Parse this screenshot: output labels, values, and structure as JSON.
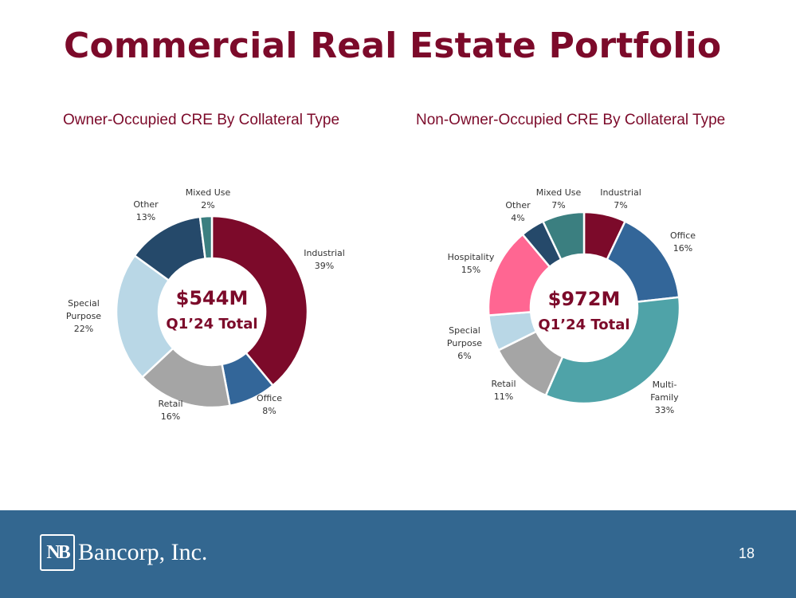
{
  "page": {
    "title": "Commercial Real Estate Portfolio",
    "page_number": "18"
  },
  "footer": {
    "logo_mark": "NB",
    "company_name": "Bancorp, Inc."
  },
  "colors": {
    "brand": "#7c0a2a",
    "footer_bg": "#336790"
  },
  "chart_data": [
    {
      "type": "pie",
      "variant": "donut",
      "title": "Owner-Occupied CRE By Collateral Type",
      "center_total": "$544M",
      "center_subtitle": "Q1’24 Total",
      "slices": [
        {
          "label": [
            "Industrial"
          ],
          "percent_label": "39%",
          "value": 39,
          "color": "#7c0a2a"
        },
        {
          "label": [
            "Office"
          ],
          "percent_label": "8%",
          "value": 8,
          "color": "#336699"
        },
        {
          "label": [
            "Retail"
          ],
          "percent_label": "16%",
          "value": 16,
          "color": "#a5a5a5"
        },
        {
          "label": [
            "Special",
            "Purpose"
          ],
          "percent_label": "22%",
          "value": 22,
          "color": "#b9d7e6"
        },
        {
          "label": [
            "Other"
          ],
          "percent_label": "13%",
          "value": 13,
          "color": "#25496a"
        },
        {
          "label": [
            "Mixed Use"
          ],
          "percent_label": "2%",
          "value": 2,
          "color": "#3b7f80"
        }
      ]
    },
    {
      "type": "pie",
      "variant": "donut",
      "title": "Non-Owner-Occupied CRE By Collateral Type",
      "center_total": "$972M",
      "center_subtitle": "Q1’24 Total",
      "slices": [
        {
          "label": [
            "Industrial"
          ],
          "percent_label": "7%",
          "value": 7,
          "color": "#7c0a2a"
        },
        {
          "label": [
            "Office"
          ],
          "percent_label": "16%",
          "value": 16,
          "color": "#336699"
        },
        {
          "label": [
            "Multi-",
            "Family"
          ],
          "percent_label": "33%",
          "value": 33,
          "color": "#4fa3a8"
        },
        {
          "label": [
            "Retail"
          ],
          "percent_label": "11%",
          "value": 11,
          "color": "#a5a5a5"
        },
        {
          "label": [
            "Special",
            "Purpose"
          ],
          "percent_label": "6%",
          "value": 6,
          "color": "#b9d7e6"
        },
        {
          "label": [
            "Hospitality"
          ],
          "percent_label": "15%",
          "value": 15,
          "color": "#ff6692"
        },
        {
          "label": [
            "Other"
          ],
          "percent_label": "4%",
          "value": 4,
          "color": "#25496a"
        },
        {
          "label": [
            "Mixed Use"
          ],
          "percent_label": "7%",
          "value": 7,
          "color": "#3b7f80"
        }
      ]
    }
  ]
}
